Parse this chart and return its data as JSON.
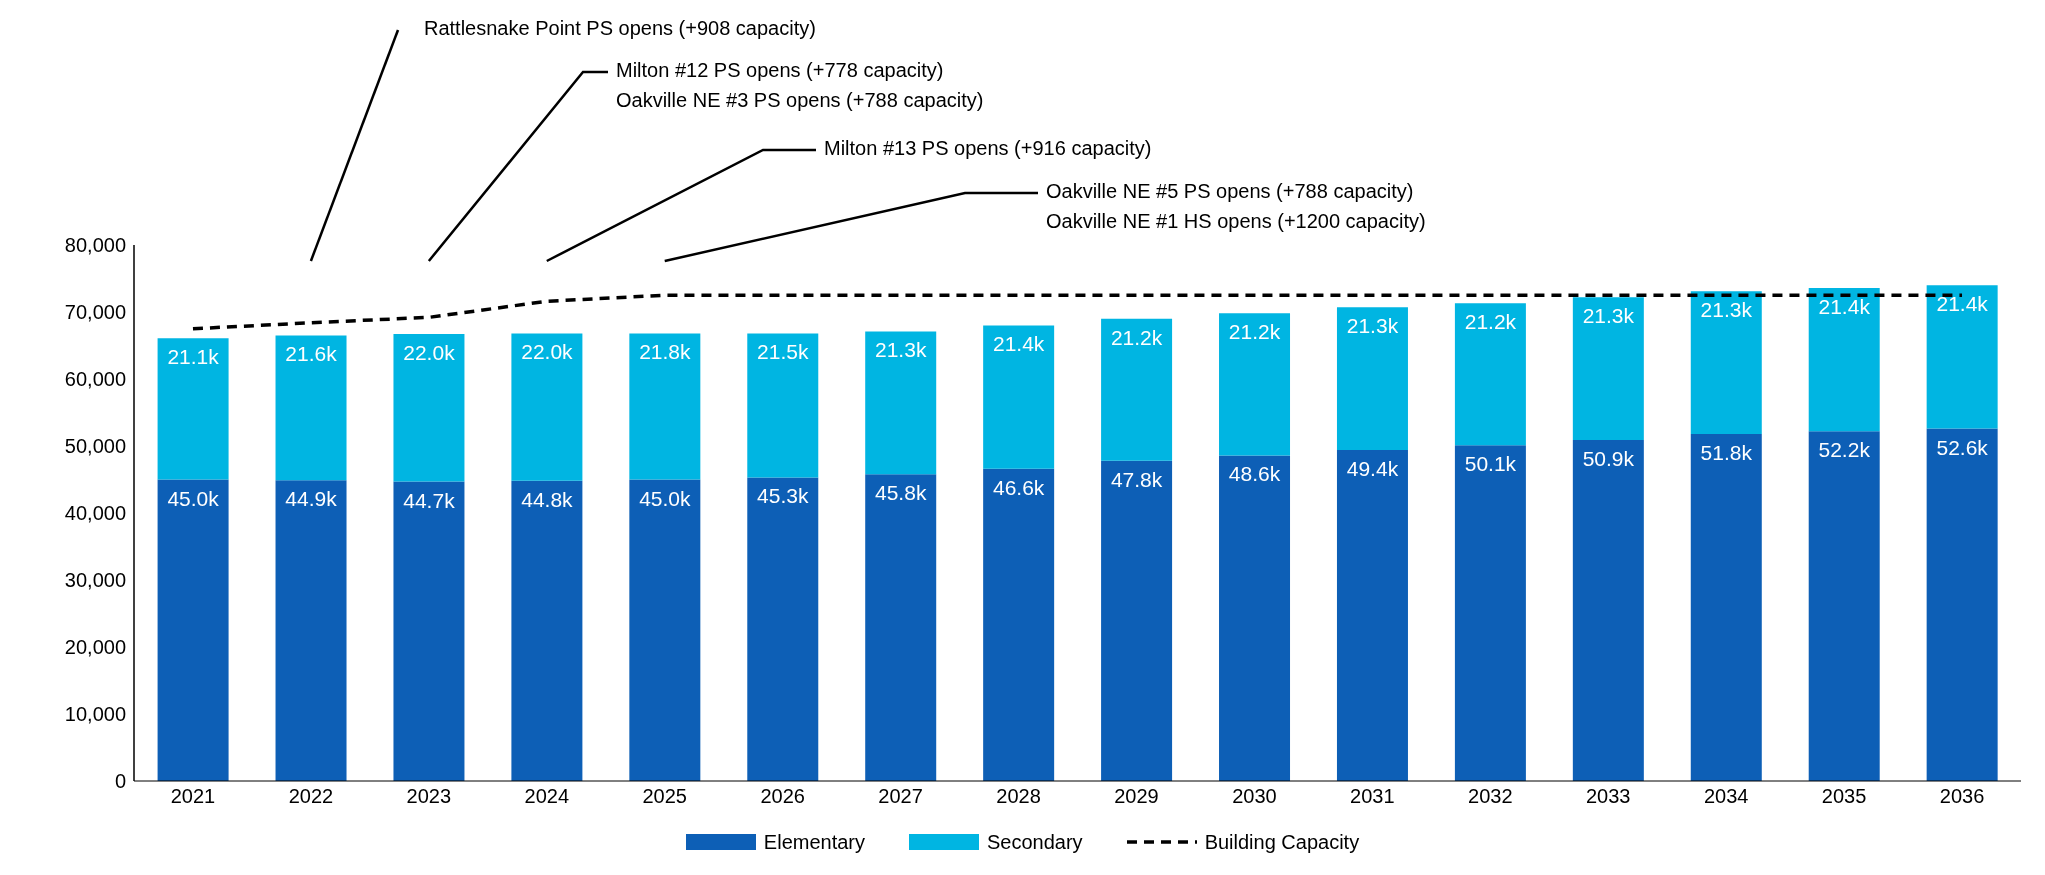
{
  "chart_data": {
    "type": "bar",
    "stacked": true,
    "categories": [
      "2021",
      "2022",
      "2023",
      "2024",
      "2025",
      "2026",
      "2027",
      "2028",
      "2029",
      "2030",
      "2031",
      "2032",
      "2033",
      "2034",
      "2035",
      "2036"
    ],
    "series": [
      {
        "name": "Elementary",
        "type": "bar",
        "color": "#0d5fb6",
        "values": [
          45000,
          44900,
          44700,
          44800,
          45000,
          45300,
          45800,
          46600,
          47800,
          48600,
          49400,
          50100,
          50900,
          51800,
          52200,
          52600
        ],
        "value_labels": [
          "45.0k",
          "44.9k",
          "44.7k",
          "44.8k",
          "45.0k",
          "45.3k",
          "45.8k",
          "46.6k",
          "47.8k",
          "48.6k",
          "49.4k",
          "50.1k",
          "50.9k",
          "51.8k",
          "52.2k",
          "52.6k"
        ]
      },
      {
        "name": "Secondary",
        "type": "bar",
        "color": "#00b5e2",
        "values": [
          21100,
          21600,
          22000,
          22000,
          21800,
          21500,
          21300,
          21400,
          21200,
          21200,
          21300,
          21200,
          21300,
          21300,
          21400,
          21400
        ],
        "value_labels": [
          "21.1k",
          "21.6k",
          "22.0k",
          "22.0k",
          "21.8k",
          "21.5k",
          "21.3k",
          "21.4k",
          "21.2k",
          "21.2k",
          "21.3k",
          "21.2k",
          "21.3k",
          "21.3k",
          "21.4k",
          "21.4k"
        ]
      },
      {
        "name": "Building Capacity",
        "type": "line",
        "color": "#000000",
        "line_style": "dashed",
        "values": [
          67500,
          68400,
          69200,
          71600,
          72500,
          72500,
          72500,
          72500,
          72500,
          72500,
          72500,
          72500,
          72500,
          72500,
          72500,
          72500
        ]
      }
    ],
    "ylim": [
      0,
      80000
    ],
    "yticks": [
      {
        "value": 0,
        "label": "0"
      },
      {
        "value": 10000,
        "label": "10,000"
      },
      {
        "value": 20000,
        "label": "20,000"
      },
      {
        "value": 30000,
        "label": "30,000"
      },
      {
        "value": 40000,
        "label": "40,000"
      },
      {
        "value": 50000,
        "label": "50,000"
      },
      {
        "value": 60000,
        "label": "60,000"
      },
      {
        "value": 70000,
        "label": "70,000"
      },
      {
        "value": 80000,
        "label": "80,000"
      }
    ],
    "legend": "bottom",
    "annotations": [
      "Rattlesnake Point PS opens (+908 capacity)",
      "Milton #12 PS opens (+778 capacity)",
      "Oakville NE #3 PS opens (+788 capacity)",
      "Milton #13 PS opens (+916 capacity)",
      "Oakville NE #5 PS opens (+788 capacity)",
      "Oakville NE #1 HS opens (+1200 capacity)"
    ]
  }
}
